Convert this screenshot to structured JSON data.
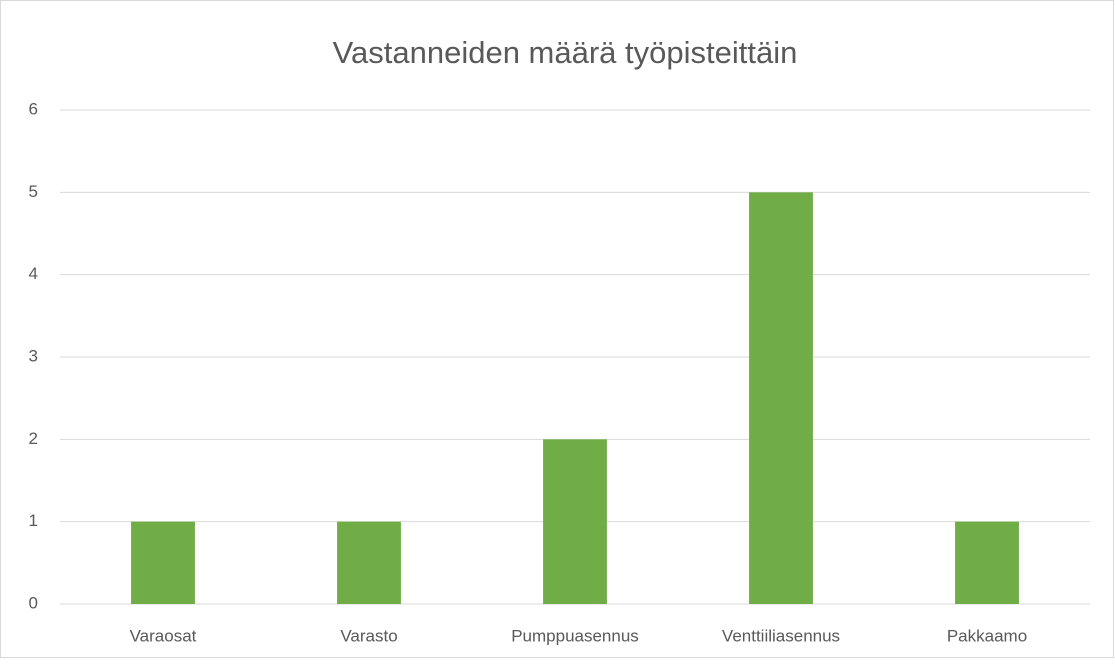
{
  "chart_data": {
    "type": "bar",
    "title": "Vastanneiden määrä työpisteittäin",
    "categories": [
      "Varaosat",
      "Varasto",
      "Pumppuasennus",
      "Venttiiliasennus",
      "Pakkaamo"
    ],
    "values": [
      1,
      1,
      2,
      5,
      1
    ],
    "color": "#70ad47",
    "ylim": [
      0,
      6
    ],
    "yticks": [
      0,
      1,
      2,
      3,
      4,
      5,
      6
    ],
    "grid": true
  }
}
